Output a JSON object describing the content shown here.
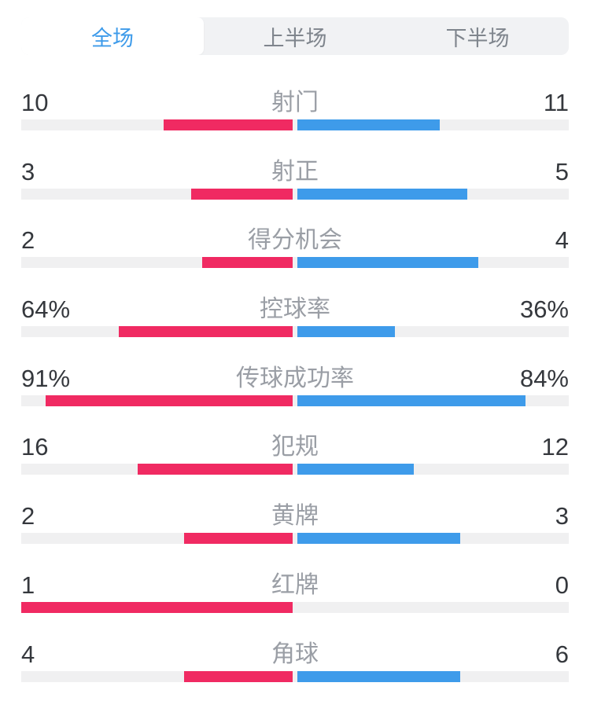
{
  "colors": {
    "home_bar": "#F02A62",
    "away_bar": "#3E9BEA",
    "track": "#F0F0F1",
    "tab_bar_bg": "#F1F2F4",
    "tab_active_text": "#3E9BEA",
    "tab_inactive_text": "#7F858D",
    "value_text": "#35383D",
    "label_text": "#9A9EA5",
    "page_bg": "#FFFFFF"
  },
  "tabs": [
    {
      "id": "full",
      "label": "全场",
      "active": true
    },
    {
      "id": "first-half",
      "label": "上半场",
      "active": false
    },
    {
      "id": "second-half",
      "label": "下半场",
      "active": false
    }
  ],
  "stats": [
    {
      "label": "射门",
      "home": "10",
      "away": "11"
    },
    {
      "label": "射正",
      "home": "3",
      "away": "5"
    },
    {
      "label": "得分机会",
      "home": "2",
      "away": "4"
    },
    {
      "label": "控球率",
      "home": "64%",
      "away": "36%"
    },
    {
      "label": "传球成功率",
      "home": "91%",
      "away": "84%"
    },
    {
      "label": "犯规",
      "home": "16",
      "away": "12"
    },
    {
      "label": "黄牌",
      "home": "2",
      "away": "3"
    },
    {
      "label": "红牌",
      "home": "1",
      "away": "0"
    },
    {
      "label": "角球",
      "home": "4",
      "away": "6"
    }
  ],
  "chart_data": {
    "type": "bar",
    "orientation": "horizontal-paired",
    "categories": [
      "射门",
      "射正",
      "得分机会",
      "控球率",
      "传球成功率",
      "犯规",
      "黄牌",
      "红牌",
      "角球"
    ],
    "series": [
      {
        "name": "home",
        "color": "#F02A62",
        "values": [
          10,
          3,
          2,
          "64%",
          "91%",
          16,
          2,
          1,
          4
        ]
      },
      {
        "name": "away",
        "color": "#3E9BEA",
        "values": [
          11,
          5,
          4,
          "36%",
          "84%",
          12,
          3,
          0,
          6
        ]
      }
    ],
    "title": "全场",
    "legend_position": "none",
    "grid": false,
    "scaling": "percent values scaled by /100; count values scaled by value/(home+away) of each half-track"
  }
}
